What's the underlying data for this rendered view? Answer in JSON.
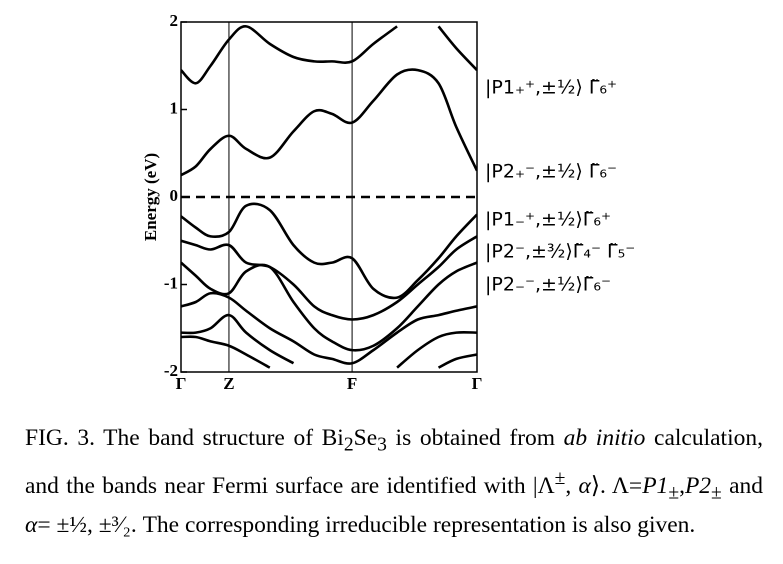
{
  "chart_data": {
    "type": "line",
    "y_label": "Energy (eV)",
    "xlim": [
      0,
      1
    ],
    "ylim": [
      -2,
      2
    ],
    "xticks": [
      {
        "value": 0,
        "label": "Γ"
      },
      {
        "value": 0.162,
        "label": "Z"
      },
      {
        "value": 0.578,
        "label": "F"
      },
      {
        "value": 1,
        "label": "Γ"
      }
    ],
    "yticks": [
      -2,
      -1,
      0,
      1,
      2
    ],
    "fermi_level": 0,
    "x": [
      0,
      0.05,
      0.1,
      0.162,
      0.22,
      0.3,
      0.38,
      0.45,
      0.51,
      0.578,
      0.65,
      0.73,
      0.8,
      0.87,
      0.93,
      1
    ],
    "series": [
      {
        "color": "#000000",
        "values": [
          0.25,
          0.35,
          0.55,
          0.7,
          0.55,
          0.45,
          0.75,
          0.98,
          0.95,
          0.85,
          1.1,
          1.4,
          1.45,
          1.3,
          0.8,
          0.3
        ]
      },
      {
        "color": "#000000",
        "values": [
          1.45,
          1.3,
          1.5,
          1.8,
          1.95,
          1.75,
          1.6,
          1.55,
          1.55,
          1.55,
          1.75,
          1.95,
          null,
          null,
          null,
          null
        ]
      },
      {
        "color": "#000000",
        "values": [
          null,
          null,
          null,
          null,
          null,
          null,
          null,
          null,
          null,
          null,
          null,
          null,
          null,
          1.95,
          1.7,
          1.45
        ]
      },
      {
        "color": "#000000",
        "values": [
          -0.22,
          -0.35,
          -0.45,
          -0.4,
          -0.1,
          -0.15,
          -0.55,
          -0.75,
          -0.75,
          -0.7,
          -1.05,
          -1.15,
          -0.95,
          -0.7,
          -0.45,
          -0.2
        ]
      },
      {
        "color": "#000000",
        "values": [
          -0.5,
          -0.55,
          -0.6,
          -0.55,
          -0.75,
          -0.8,
          -1.0,
          -1.25,
          -1.35,
          -1.4,
          -1.35,
          -1.2,
          -1.0,
          -0.8,
          -0.6,
          -0.45
        ]
      },
      {
        "color": "#000000",
        "values": [
          -0.75,
          -0.9,
          -1.05,
          -1.1,
          -0.85,
          -0.8,
          -1.2,
          -1.5,
          -1.65,
          -1.75,
          -1.7,
          -1.5,
          -1.25,
          -1.0,
          -0.85,
          -0.75
        ]
      },
      {
        "color": "#000000",
        "values": [
          -1.25,
          -1.2,
          -1.1,
          -1.15,
          -1.3,
          -1.5,
          -1.65,
          -1.8,
          -1.85,
          -1.9,
          -1.75,
          -1.55,
          -1.4,
          -1.35,
          -1.3,
          -1.25
        ]
      },
      {
        "color": "#000000",
        "values": [
          -1.55,
          -1.55,
          -1.5,
          -1.35,
          -1.55,
          -1.75,
          -1.9,
          null,
          null,
          null,
          null,
          -1.95,
          -1.75,
          -1.6,
          -1.55,
          -1.55
        ]
      },
      {
        "color": "#000000",
        "values": [
          -1.6,
          -1.6,
          -1.65,
          -1.7,
          -1.8,
          -1.95,
          null,
          null,
          null,
          null,
          null,
          null,
          null,
          -1.95,
          -1.85,
          -1.8
        ]
      }
    ],
    "annotations": [
      "|P1₊⁺,±½⟩ Γ̃₆⁺",
      "|P2₊⁻,±½⟩ Γ̃₆⁻",
      "|P1₋⁺,±½⟩Γ̃₆⁺",
      "|P2⁻,±³⁄₂⟩Γ̃₄⁻ Γ̃₅⁻",
      "|P2₋⁻,±½⟩Γ̃₆⁻"
    ]
  },
  "caption": [
    "FIG. 3. The band structure of Bi",
    "2",
    "Se",
    "3",
    " is obtained from ",
    "ab initio",
    " calculation, and the bands near Fermi surface are identified with ",
    "|Λ",
    "±",
    ", ",
    "α",
    "⟩. Λ=",
    "P1",
    "±",
    ",",
    "P2",
    "±",
    " and ",
    "α",
    "= ±",
    "½",
    ", ±",
    "³⁄₂",
    ". The corresponding irreducible representation is also given."
  ]
}
